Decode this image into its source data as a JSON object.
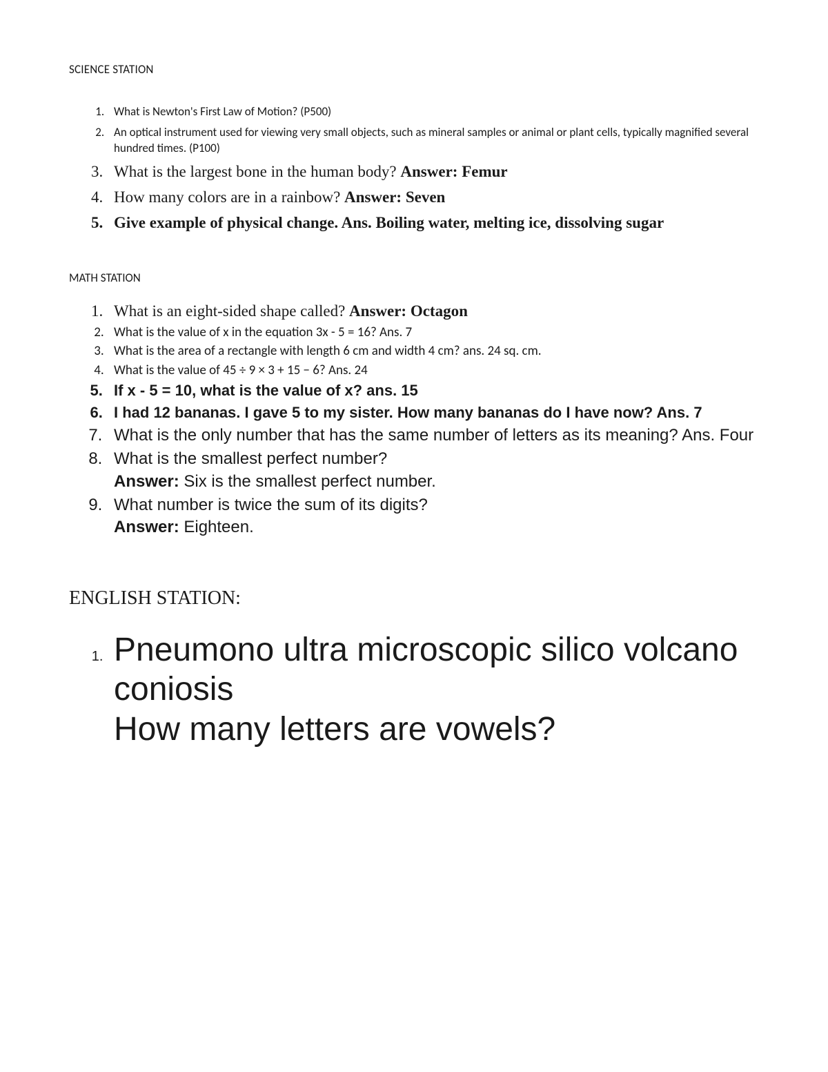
{
  "science": {
    "heading": "SCIENCE STATION",
    "items": [
      {
        "text": "What is Newton's First Law of Motion? (P500)"
      },
      {
        "text": "An optical instrument used for viewing very small objects, such as mineral samples or animal or plant cells, typically magnified several hundred times. (P100)"
      },
      {
        "q": "What is the largest bone in the human body? ",
        "a": "Answer: Femur"
      },
      {
        "q": "How many colors are in a rainbow? ",
        "a": "Answer: Seven"
      },
      {
        "bold_all": "Give example of physical change. Ans. Boiling water, melting ice, dissolving sugar"
      }
    ]
  },
  "math": {
    "heading": "MATH STATION",
    "items": [
      {
        "q": "What is an eight-sided shape called? ",
        "a": "Answer: Octagon"
      },
      {
        "text": "What is the value of x in the equation 3x - 5 = 16? Ans. 7"
      },
      {
        "text": "What is the area of a rectangle with length 6 cm and width 4 cm? ans. 24 sq. cm."
      },
      {
        "text": "What is the value of 45 ÷ 9 × 3 + 15 − 6? Ans. 24"
      },
      {
        "bold_all": "If x - 5 = 10, what is the value of x? ans. 15"
      },
      {
        "bold_all": "I had 12 bananas. I gave 5 to my sister. How many bananas do I have now? Ans. 7"
      },
      {
        "text": "What is the only number that has the same number of letters as its meaning? Ans. Four"
      },
      {
        "q": "What is the smallest perfect number?",
        "a_label": "Answer:",
        "a_text": " Six is the smallest perfect number."
      },
      {
        "q": "What number is twice the sum of its digits?",
        "a_label": "Answer:",
        "a_text": " Eighteen."
      }
    ]
  },
  "english": {
    "heading": "ENGLISH STATION:",
    "items": [
      {
        "line1": "Pneumono ultra microscopic silico volcano coniosis",
        "line2": "How many letters are vowels?"
      }
    ]
  }
}
